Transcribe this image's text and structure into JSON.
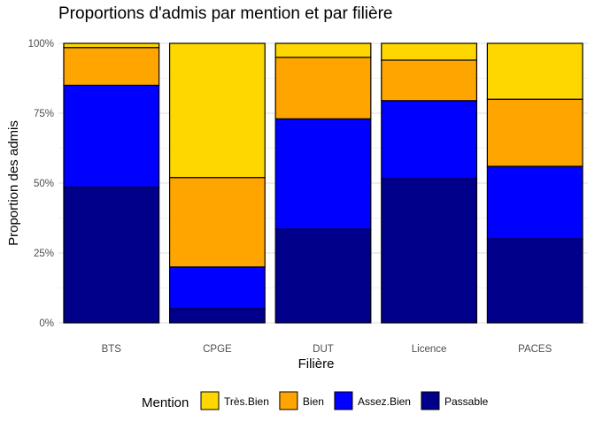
{
  "chart_data": {
    "type": "bar",
    "stacked": true,
    "title": "Proportions d'admis par mention et par filière",
    "xlabel": "Filière",
    "ylabel": "Proportion des admis",
    "categories": [
      "BTS",
      "CPGE",
      "DUT",
      "Licence",
      "PACES"
    ],
    "yticks": [
      "0%",
      "25%",
      "50%",
      "75%",
      "100%"
    ],
    "ylim": [
      0,
      1
    ],
    "grid": true,
    "legend": {
      "title": "Mention",
      "position": "bottom",
      "entries": [
        "Très.Bien",
        "Bien",
        "Assez.Bien",
        "Passable"
      ]
    },
    "series": [
      {
        "name": "Passable",
        "color": "#00008B",
        "values": [
          0.485,
          0.05,
          0.335,
          0.515,
          0.3
        ]
      },
      {
        "name": "Assez.Bien",
        "color": "#0000FF",
        "values": [
          0.365,
          0.15,
          0.395,
          0.28,
          0.26
        ]
      },
      {
        "name": "Bien",
        "color": "#FFA500",
        "values": [
          0.135,
          0.32,
          0.22,
          0.145,
          0.24
        ]
      },
      {
        "name": "Très.Bien",
        "color": "#FFD700",
        "values": [
          0.015,
          0.48,
          0.05,
          0.06,
          0.2
        ]
      }
    ]
  }
}
